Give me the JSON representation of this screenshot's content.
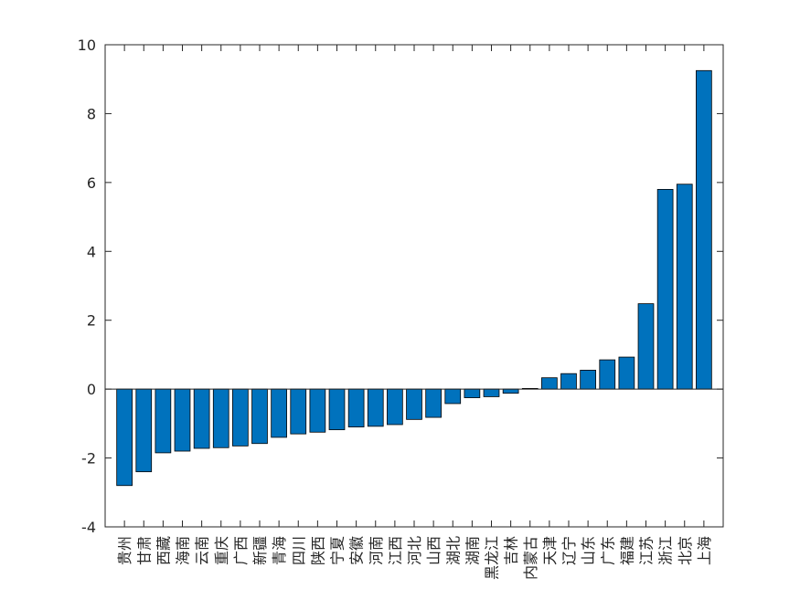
{
  "chart_data": {
    "type": "bar",
    "categories": [
      "贵州",
      "甘肃",
      "西藏",
      "海南",
      "云南",
      "重庆",
      "广西",
      "新疆",
      "青海",
      "四川",
      "陕西",
      "宁夏",
      "安徽",
      "河南",
      "江西",
      "河北",
      "山西",
      "湖北",
      "湖南",
      "黑龙江",
      "吉林",
      "内蒙古",
      "天津",
      "辽宁",
      "山东",
      "广东",
      "福建",
      "江苏",
      "浙江",
      "北京",
      "上海"
    ],
    "values": [
      -2.8,
      -2.4,
      -1.85,
      -1.8,
      -1.72,
      -1.7,
      -1.65,
      -1.58,
      -1.4,
      -1.3,
      -1.25,
      -1.18,
      -1.1,
      -1.08,
      -1.03,
      -0.88,
      -0.82,
      -0.42,
      -0.25,
      -0.22,
      -0.12,
      0.02,
      0.33,
      0.45,
      0.55,
      0.85,
      0.93,
      2.48,
      5.8,
      5.95,
      9.25
    ],
    "color": "#0072bd",
    "ylim": [
      -4,
      10
    ],
    "yticks": [
      -4,
      -2,
      0,
      2,
      4,
      6,
      8,
      10
    ],
    "grid": false
  }
}
